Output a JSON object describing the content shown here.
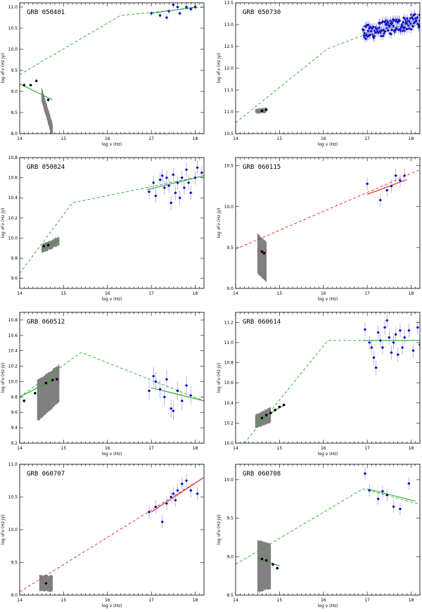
{
  "figure": {
    "colors": {
      "optical": "#000000",
      "xray": "#0000cc",
      "band": "#808080",
      "model_green": "#22aa22",
      "model_red": "#dd2222",
      "error_bar": "#9999dd"
    }
  },
  "chart_data": [
    {
      "type": "scatter",
      "title": "GRB 050401",
      "xlabel": "log ν (Hz)",
      "ylabel": "log νFν (Hz Jy)",
      "xlim": [
        14,
        18.2
      ],
      "ylim": [
        8.0,
        11.1
      ],
      "xticks": [
        "14",
        "15",
        "16",
        "17",
        "18"
      ],
      "yticks": [
        "8.0",
        "8.5",
        "9.0",
        "9.5",
        "10.0",
        "10.5",
        "11.0"
      ],
      "model_color": "green",
      "dashed": [
        [
          14,
          9.4
        ],
        [
          16.3,
          10.8
        ],
        [
          18.2,
          11.0
        ]
      ],
      "solid_segments": [
        [
          [
            14,
            9.18
          ],
          [
            14.75,
            8.8
          ]
        ],
        [
          [
            17.0,
            10.85
          ],
          [
            18.0,
            11.0
          ]
        ]
      ],
      "band": {
        "x0": 14.5,
        "x1": 14.75,
        "y_top": [
          9.05,
          8.2
        ],
        "y_bot": [
          8.8,
          7.9
        ]
      },
      "optical": [
        [
          14.1,
          9.15
        ],
        [
          14.25,
          9.15
        ],
        [
          14.38,
          9.25
        ],
        [
          14.65,
          8.8
        ]
      ],
      "xray": [
        [
          17.0,
          10.85
        ],
        [
          17.2,
          10.8
        ],
        [
          17.35,
          10.75
        ],
        [
          17.4,
          10.9
        ],
        [
          17.5,
          11.05
        ],
        [
          17.6,
          11.0
        ],
        [
          17.65,
          10.85
        ],
        [
          17.8,
          11.0
        ],
        [
          17.9,
          10.95
        ],
        [
          18.0,
          11.0
        ]
      ],
      "xray_err": 0.07
    },
    {
      "type": "scatter",
      "title": "GRB 050730",
      "xlabel": "log ν (Hz)",
      "ylabel": "log νFν (Hz Jy)",
      "xlim": [
        14,
        18.2
      ],
      "ylim": [
        10.5,
        13.5
      ],
      "xticks": [
        "14",
        "15",
        "16",
        "17",
        "18"
      ],
      "yticks": [
        "10.5",
        "11.0",
        "11.5",
        "12.0",
        "12.5",
        "13.0",
        "13.5"
      ],
      "model_color": "green",
      "dashed": [
        [
          14,
          10.75
        ],
        [
          16.1,
          12.45
        ],
        [
          16.9,
          12.75
        ],
        [
          18.2,
          13.0
        ]
      ],
      "solid_segments": [
        [
          [
            16.9,
            12.8
          ],
          [
            18.2,
            13.05
          ]
        ]
      ],
      "band": {
        "x0": 14.45,
        "x1": 14.7,
        "y_top": [
          11.03,
          11.06
        ],
        "y_bot": [
          10.99,
          11.01
        ]
      },
      "optical": [
        [
          14.6,
          11.02
        ],
        [
          14.7,
          11.05
        ]
      ],
      "xray_cloud": {
        "x0": 16.9,
        "x1": 18.2,
        "y0": 12.8,
        "y1": 13.1,
        "n": 150
      },
      "xray_err": 0.1
    },
    {
      "type": "scatter",
      "title": "GRB 050824",
      "xlabel": "log ν (Hz)",
      "ylabel": "log νFν (Hz Jy)",
      "xlim": [
        14,
        18.2
      ],
      "ylim": [
        9.5,
        10.8
      ],
      "xticks": [
        "14",
        "15",
        "16",
        "17",
        "18"
      ],
      "yticks": [
        "9.6",
        "9.8",
        "10.0",
        "10.2",
        "10.4",
        "10.6",
        "10.8"
      ],
      "model_color": "green",
      "dashed": [
        [
          14,
          9.65
        ],
        [
          15.2,
          10.35
        ],
        [
          18.2,
          10.62
        ]
      ],
      "solid_segments": [
        [
          [
            14.5,
            9.88
          ],
          [
            14.9,
            9.98
          ]
        ],
        [
          [
            16.9,
            10.48
          ],
          [
            18.2,
            10.62
          ]
        ]
      ],
      "band": {
        "x0": 14.5,
        "x1": 14.9,
        "y_top": [
          9.92,
          10.0
        ],
        "y_bot": [
          9.86,
          9.94
        ]
      },
      "optical": [
        [
          14.55,
          9.92
        ],
        [
          14.65,
          9.93
        ]
      ],
      "xray": [
        [
          16.95,
          10.46
        ],
        [
          17.05,
          10.55
        ],
        [
          17.1,
          10.42
        ],
        [
          17.2,
          10.58
        ],
        [
          17.25,
          10.62
        ],
        [
          17.3,
          10.5
        ],
        [
          17.35,
          10.6
        ],
        [
          17.4,
          10.52
        ],
        [
          17.45,
          10.35
        ],
        [
          17.5,
          10.63
        ],
        [
          17.55,
          10.45
        ],
        [
          17.6,
          10.55
        ],
        [
          17.65,
          10.4
        ],
        [
          17.7,
          10.6
        ],
        [
          17.75,
          10.5
        ],
        [
          17.8,
          10.68
        ],
        [
          17.85,
          10.55
        ],
        [
          17.9,
          10.45
        ],
        [
          18.0,
          10.6
        ],
        [
          18.05,
          10.7
        ],
        [
          18.15,
          10.65
        ]
      ],
      "xray_err": 0.07
    },
    {
      "type": "scatter",
      "title": "GRB 060115",
      "xlabel": "log ν (Hz)",
      "ylabel": "log νFν (Hz Jy)",
      "xlim": [
        14,
        18.2
      ],
      "ylim": [
        9.0,
        10.6
      ],
      "xticks": [
        "14",
        "15",
        "16",
        "17",
        "18"
      ],
      "yticks": [
        "9.0",
        "9.5",
        "10.0",
        "10.5"
      ],
      "model_color": "red",
      "dashed": [
        [
          14,
          9.48
        ],
        [
          18.2,
          10.45
        ]
      ],
      "solid_segments": [
        [
          [
            14.5,
            9.47
          ],
          [
            14.7,
            9.44
          ]
        ],
        [
          [
            17.0,
            10.15
          ],
          [
            17.9,
            10.33
          ]
        ]
      ],
      "band": {
        "x0": 14.5,
        "x1": 14.7,
        "y_top": [
          9.65,
          9.55
        ],
        "y_bot": [
          9.2,
          9.1
        ]
      },
      "optical": [
        [
          14.6,
          9.45
        ],
        [
          14.65,
          9.43
        ]
      ],
      "xray": [
        [
          17.0,
          10.28
        ],
        [
          17.3,
          10.08
        ],
        [
          17.45,
          10.2
        ],
        [
          17.55,
          10.25
        ],
        [
          17.65,
          10.38
        ],
        [
          17.75,
          10.32
        ],
        [
          17.85,
          10.38
        ]
      ],
      "xray_err": 0.08
    },
    {
      "type": "scatter",
      "title": "GRB 060512",
      "xlabel": "log ν (Hz)",
      "ylabel": "log νFν (Hz Jy)",
      "xlim": [
        14,
        18.2
      ],
      "ylim": [
        9.2,
        10.9
      ],
      "xticks": [
        "14",
        "15",
        "16",
        "17",
        "18"
      ],
      "yticks": [
        "9.2",
        "9.4",
        "9.6",
        "9.8",
        "10.0",
        "10.2",
        "10.4",
        "10.6",
        "10.8"
      ],
      "model_color": "green",
      "dashed": [
        [
          14,
          9.8
        ],
        [
          15.4,
          10.38
        ],
        [
          18.2,
          9.75
        ]
      ],
      "solid_segments": [
        [
          [
            14.0,
            9.8
          ],
          [
            14.85,
            10.05
          ]
        ],
        [
          [
            17.0,
            9.92
          ],
          [
            18.2,
            9.75
          ]
        ]
      ],
      "band": {
        "x0": 14.4,
        "x1": 14.9,
        "y_top": [
          10.0,
          10.2
        ],
        "y_bot": [
          9.5,
          9.75
        ]
      },
      "optical": [
        [
          14.1,
          9.75
        ],
        [
          14.35,
          9.85
        ],
        [
          14.6,
          9.98
        ],
        [
          14.75,
          10.02
        ],
        [
          14.85,
          10.03
        ]
      ],
      "xray": [
        [
          16.95,
          9.88
        ],
        [
          17.05,
          10.07
        ],
        [
          17.1,
          10.0
        ],
        [
          17.2,
          9.9
        ],
        [
          17.3,
          9.8
        ],
        [
          17.35,
          10.03
        ],
        [
          17.45,
          9.65
        ],
        [
          17.5,
          9.62
        ],
        [
          17.6,
          9.88
        ],
        [
          17.7,
          9.75
        ],
        [
          17.8,
          9.95
        ],
        [
          17.9,
          9.82
        ]
      ],
      "xray_err": 0.12
    },
    {
      "type": "scatter",
      "title": "GRB 060614",
      "xlabel": "log ν (Hz)",
      "ylabel": "log νFν (Hz Jy)",
      "xlim": [
        14,
        18.2
      ],
      "ylim": [
        10.0,
        11.3
      ],
      "xticks": [
        "14",
        "15",
        "16",
        "17",
        "18"
      ],
      "yticks": [
        "10.0",
        "10.2",
        "10.4",
        "10.6",
        "10.8",
        "11.0",
        "11.2"
      ],
      "model_color": "green",
      "dashed": [
        [
          14.2,
          10.0
        ],
        [
          16.1,
          11.02
        ],
        [
          18.2,
          11.02
        ]
      ],
      "solid_segments": [
        [
          [
            14.45,
            10.2
          ],
          [
            15.1,
            10.38
          ]
        ],
        [
          [
            16.9,
            11.02
          ],
          [
            18.2,
            11.02
          ]
        ]
      ],
      "band": {
        "x0": 14.45,
        "x1": 14.8,
        "y_top": [
          10.27,
          10.34
        ],
        "y_bot": [
          10.16,
          10.22
        ]
      },
      "optical": [
        [
          14.6,
          10.25
        ],
        [
          14.7,
          10.28
        ],
        [
          14.8,
          10.3
        ],
        [
          14.9,
          10.33
        ],
        [
          15.0,
          10.36
        ],
        [
          15.1,
          10.38
        ]
      ],
      "xray": [
        [
          16.95,
          11.13
        ],
        [
          17.05,
          11.0
        ],
        [
          17.1,
          10.95
        ],
        [
          17.15,
          10.85
        ],
        [
          17.2,
          10.75
        ],
        [
          17.25,
          11.1
        ],
        [
          17.3,
          11.02
        ],
        [
          17.35,
          10.95
        ],
        [
          17.4,
          11.15
        ],
        [
          17.45,
          11.22
        ],
        [
          17.5,
          11.05
        ],
        [
          17.55,
          10.9
        ],
        [
          17.6,
          11.0
        ],
        [
          17.65,
          11.08
        ],
        [
          17.7,
          10.88
        ],
        [
          17.75,
          11.12
        ],
        [
          17.8,
          10.95
        ],
        [
          17.85,
          11.05
        ],
        [
          17.95,
          11.12
        ],
        [
          18.05,
          10.92
        ],
        [
          18.15,
          11.15
        ],
        [
          18.2,
          10.98
        ]
      ],
      "xray_err": 0.07
    },
    {
      "type": "scatter",
      "title": "GRB 060707",
      "xlabel": "log ν (Hz)",
      "ylabel": "log νFν (Hz Jy)",
      "xlim": [
        14,
        18.2
      ],
      "ylim": [
        9.0,
        11.0
      ],
      "xticks": [
        "14",
        "15",
        "16",
        "17",
        "18"
      ],
      "yticks": [
        "9.0",
        "9.5",
        "10.0",
        "10.5",
        "11.0"
      ],
      "model_color": "red",
      "dashed": [
        [
          14,
          9.05
        ],
        [
          18.2,
          10.8
        ]
      ],
      "solid_segments": [
        [
          [
            17.0,
            10.27
          ],
          [
            18.2,
            10.8
          ]
        ]
      ],
      "band": {
        "x0": 14.45,
        "x1": 14.75,
        "y_top": [
          9.28,
          9.28
        ],
        "y_bot": [
          9.08,
          9.08
        ]
      },
      "optical": [
        [
          14.6,
          9.18
        ]
      ],
      "xray": [
        [
          16.95,
          10.27
        ],
        [
          17.1,
          10.35
        ],
        [
          17.25,
          10.12
        ],
        [
          17.35,
          10.4
        ],
        [
          17.45,
          10.5
        ],
        [
          17.5,
          10.55
        ],
        [
          17.55,
          10.45
        ],
        [
          17.6,
          10.6
        ],
        [
          17.7,
          10.7
        ],
        [
          17.8,
          10.75
        ],
        [
          17.9,
          10.6
        ],
        [
          18.05,
          10.55
        ]
      ],
      "xray_err": 0.1
    },
    {
      "type": "scatter",
      "title": "GRB 060708",
      "xlabel": "log ν (Hz)",
      "ylabel": "log νFν (Hz Jy)",
      "xlim": [
        14,
        18.2
      ],
      "ylim": [
        8.5,
        10.2
      ],
      "xticks": [
        "14",
        "15",
        "16",
        "17",
        "18"
      ],
      "yticks": [
        "8.5",
        "9.0",
        "9.5",
        "10.0"
      ],
      "model_color": "green",
      "dashed": [
        [
          14,
          8.9
        ],
        [
          16.9,
          9.88
        ],
        [
          18.2,
          9.68
        ]
      ],
      "solid_segments": [
        [
          [
            14.5,
            8.98
          ],
          [
            15.0,
            8.88
          ]
        ],
        [
          [
            17.0,
            9.88
          ],
          [
            18.1,
            9.72
          ]
        ]
      ],
      "band": {
        "x0": 14.5,
        "x1": 14.8,
        "y_top": [
          9.2,
          9.15
        ],
        "y_bot": [
          8.55,
          8.6
        ]
      },
      "optical": [
        [
          14.6,
          8.97
        ],
        [
          14.7,
          8.95
        ],
        [
          14.85,
          8.9
        ],
        [
          14.95,
          8.85
        ]
      ],
      "xray": [
        [
          16.95,
          10.08
        ],
        [
          17.05,
          9.86
        ],
        [
          17.25,
          9.75
        ],
        [
          17.35,
          9.85
        ],
        [
          17.45,
          9.8
        ],
        [
          17.6,
          9.65
        ],
        [
          17.75,
          9.62
        ],
        [
          17.95,
          9.95
        ]
      ],
      "xray_err": 0.08
    }
  ]
}
